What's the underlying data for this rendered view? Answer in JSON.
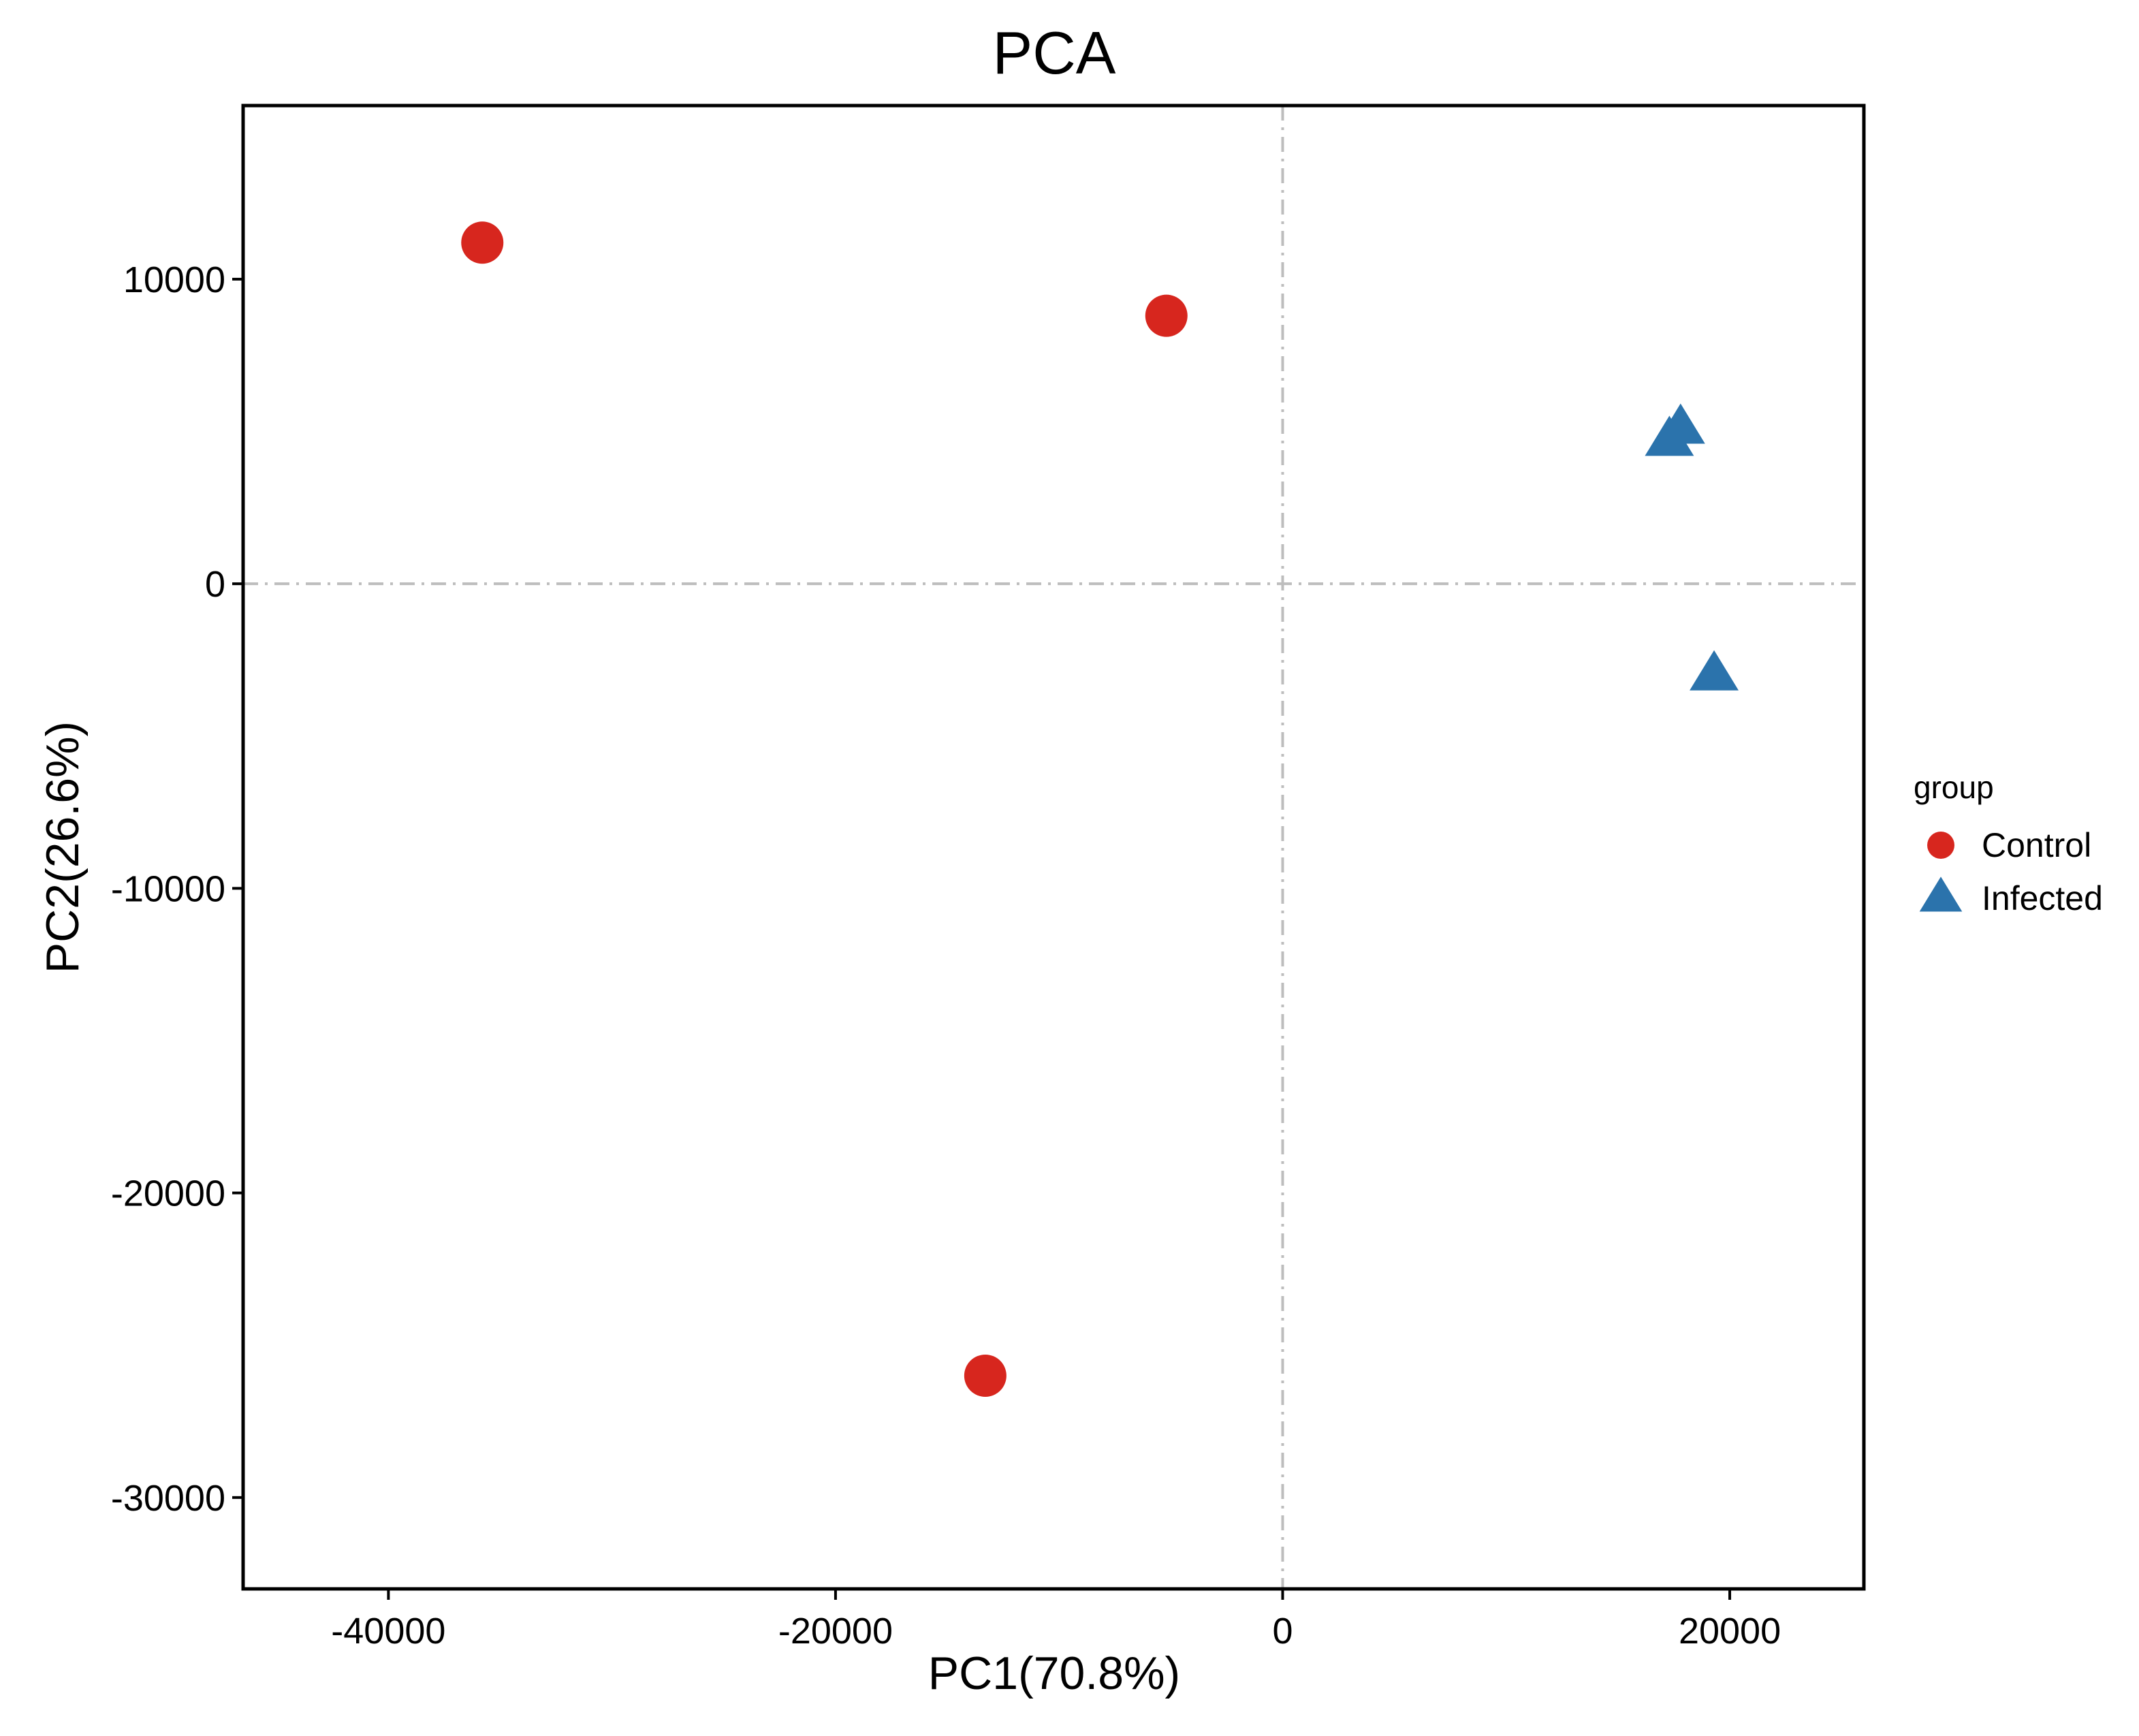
{
  "chart_data": {
    "type": "scatter",
    "title": "PCA",
    "xlabel": "PC1(70.8%)",
    "ylabel": "PC2(26.6%)",
    "xlim": [
      -46500,
      26000
    ],
    "ylim": [
      -33000,
      15700
    ],
    "xticks": [
      -40000,
      -20000,
      0,
      20000
    ],
    "yticks": [
      10000,
      0,
      -10000,
      -20000,
      -30000
    ],
    "reference_lines": {
      "x": 0,
      "y": 0,
      "style": "dash-dot"
    },
    "grid": false,
    "legend": {
      "title": "group",
      "position": "right"
    },
    "series": [
      {
        "name": "Control",
        "marker": "circle",
        "color": "#D7261E",
        "points": [
          {
            "x": -35800,
            "y": 11200
          },
          {
            "x": -5200,
            "y": 8800
          },
          {
            "x": -13300,
            "y": -26000
          }
        ]
      },
      {
        "name": "Infected",
        "marker": "triangle",
        "color": "#2B73AC",
        "points": [
          {
            "x": 17300,
            "y": 4700
          },
          {
            "x": 17800,
            "y": 5100
          },
          {
            "x": 19300,
            "y": -3000
          }
        ]
      }
    ]
  }
}
